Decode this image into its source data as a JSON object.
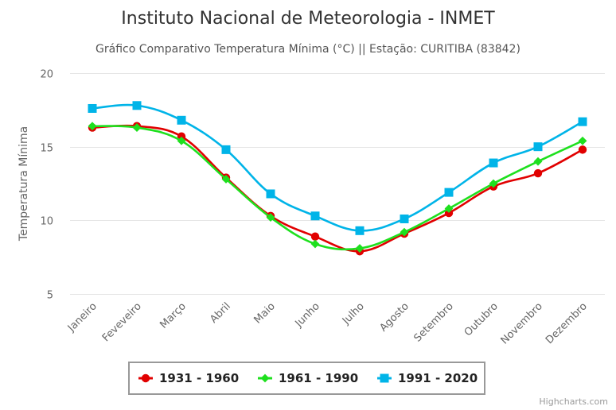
{
  "credits": "Highcharts.com",
  "chart_data": {
    "type": "line",
    "title": "Instituto Nacional de Meteorologia - INMET",
    "subtitle": "Gráfico Comparativo Temperatura Mínima (°C) || Estação: CURITIBA (83842)",
    "xlabel": "",
    "ylabel": "Temperatura Mínima",
    "ylim": [
      5,
      20
    ],
    "yticks": [
      5,
      10,
      15,
      20
    ],
    "grid": true,
    "legend_position": "bottom-center",
    "categories": [
      "Janeiro",
      "Feveveiro",
      "Março",
      "Abril",
      "Maio",
      "Junho",
      "Julho",
      "Agosto",
      "Setembro",
      "Outubro",
      "Novembro",
      "Dezembro"
    ],
    "series": [
      {
        "name": "1931 - 1960",
        "color": "#e10000",
        "marker": "circle",
        "values": [
          16.3,
          16.4,
          15.7,
          12.9,
          10.3,
          8.9,
          7.9,
          9.1,
          10.5,
          12.3,
          13.2,
          14.8
        ]
      },
      {
        "name": "1961 - 1990",
        "color": "#1ee01e",
        "marker": "diamond",
        "values": [
          16.4,
          16.3,
          15.4,
          12.8,
          10.2,
          8.4,
          8.1,
          9.2,
          10.8,
          12.5,
          14.0,
          15.4
        ]
      },
      {
        "name": "1991 - 2020",
        "color": "#00b4e8",
        "marker": "square",
        "values": [
          17.6,
          17.8,
          16.8,
          14.8,
          11.8,
          10.3,
          9.3,
          10.1,
          11.9,
          13.9,
          15.0,
          16.7
        ]
      }
    ]
  }
}
